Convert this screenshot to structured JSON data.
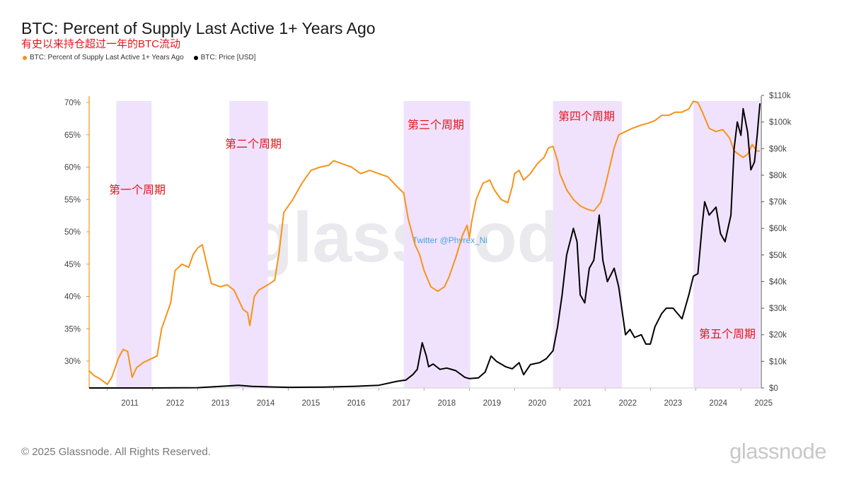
{
  "title": "BTC: Percent of Supply Last Active 1+ Years Ago",
  "subtitle": "有史以来持仓超过一年的BTC流动",
  "legend": [
    {
      "label": "BTC: Percent of Supply Last Active 1+ Years Ago",
      "color": "#f7931a"
    },
    {
      "label": "BTC: Price [USD]",
      "color": "#000000"
    }
  ],
  "copyright": "© 2025 Glassnode. All Rights Reserved.",
  "brand": "glassnode",
  "watermark": "glassnode",
  "watermark_handle": "Twitter @Phyrex_Ni",
  "chart_data": {
    "type": "line",
    "xlabel": "",
    "x_ticks": [
      "2011",
      "2012",
      "2013",
      "2014",
      "2015",
      "2016",
      "2017",
      "2018",
      "2019",
      "2020",
      "2021",
      "2022",
      "2023",
      "2024",
      "2025"
    ],
    "xlim": [
      2010.6,
      2025.45
    ],
    "y_left": {
      "ticks": [
        "30%",
        "35%",
        "40%",
        "45%",
        "50%",
        "55%",
        "60%",
        "65%",
        "70%"
      ],
      "lim": [
        26,
        71
      ],
      "unit": "%"
    },
    "y_right": {
      "ticks": [
        "$0",
        "$10k",
        "$20k",
        "$30k",
        "$40k",
        "$50k",
        "$60k",
        "$70k",
        "$80k",
        "$90k",
        "$100k",
        "$110k"
      ],
      "lim": [
        0,
        110000
      ],
      "unit": "USD"
    },
    "highlight_regions": [
      {
        "start": 2011.2,
        "end": 2011.98,
        "label": "第一个周期"
      },
      {
        "start": 2013.7,
        "end": 2014.55,
        "label": "第二个周期"
      },
      {
        "start": 2017.55,
        "end": 2019.02,
        "label": "第三个周期"
      },
      {
        "start": 2020.85,
        "end": 2022.37,
        "label": "第四个周期"
      },
      {
        "start": 2023.95,
        "end": 2025.42,
        "label": "第五个周期"
      }
    ],
    "series": [
      {
        "name": "BTC: Percent of Supply Last Active 1+ Years Ago",
        "axis": "left",
        "color": "#f7931a",
        "points": [
          [
            2010.6,
            28.5
          ],
          [
            2010.7,
            27.8
          ],
          [
            2010.85,
            27.2
          ],
          [
            2011.0,
            26.4
          ],
          [
            2011.1,
            27.5
          ],
          [
            2011.25,
            30.5
          ],
          [
            2011.35,
            31.8
          ],
          [
            2011.45,
            31.5
          ],
          [
            2011.55,
            27.5
          ],
          [
            2011.65,
            29.0
          ],
          [
            2011.8,
            29.8
          ],
          [
            2011.95,
            30.3
          ],
          [
            2012.1,
            30.8
          ],
          [
            2012.2,
            35.0
          ],
          [
            2012.3,
            37.0
          ],
          [
            2012.4,
            39.0
          ],
          [
            2012.5,
            44.0
          ],
          [
            2012.65,
            45.0
          ],
          [
            2012.8,
            44.5
          ],
          [
            2012.9,
            46.5
          ],
          [
            2013.0,
            47.5
          ],
          [
            2013.1,
            48.0
          ],
          [
            2013.2,
            45.0
          ],
          [
            2013.3,
            42.0
          ],
          [
            2013.5,
            41.5
          ],
          [
            2013.65,
            41.8
          ],
          [
            2013.8,
            41.0
          ],
          [
            2014.0,
            38.0
          ],
          [
            2014.1,
            37.5
          ],
          [
            2014.15,
            35.5
          ],
          [
            2014.25,
            40.0
          ],
          [
            2014.35,
            41.0
          ],
          [
            2014.55,
            41.8
          ],
          [
            2014.7,
            42.5
          ],
          [
            2014.8,
            47.0
          ],
          [
            2014.9,
            53.0
          ],
          [
            2015.1,
            55.0
          ],
          [
            2015.3,
            57.5
          ],
          [
            2015.5,
            59.5
          ],
          [
            2015.7,
            60.0
          ],
          [
            2015.9,
            60.3
          ],
          [
            2016.0,
            61.0
          ],
          [
            2016.2,
            60.5
          ],
          [
            2016.4,
            60.0
          ],
          [
            2016.6,
            59.0
          ],
          [
            2016.8,
            59.5
          ],
          [
            2017.0,
            59.0
          ],
          [
            2017.2,
            58.5
          ],
          [
            2017.4,
            57.0
          ],
          [
            2017.55,
            56.0
          ],
          [
            2017.65,
            52.0
          ],
          [
            2017.8,
            48.0
          ],
          [
            2017.9,
            46.5
          ],
          [
            2018.0,
            44.0
          ],
          [
            2018.15,
            41.5
          ],
          [
            2018.3,
            40.8
          ],
          [
            2018.45,
            41.5
          ],
          [
            2018.55,
            43.0
          ],
          [
            2018.7,
            46.0
          ],
          [
            2018.85,
            49.5
          ],
          [
            2018.95,
            51.0
          ],
          [
            2019.0,
            49.0
          ],
          [
            2019.05,
            51.5
          ],
          [
            2019.15,
            55.0
          ],
          [
            2019.3,
            57.5
          ],
          [
            2019.45,
            58.0
          ],
          [
            2019.55,
            56.5
          ],
          [
            2019.7,
            55.0
          ],
          [
            2019.85,
            54.5
          ],
          [
            2019.95,
            57.0
          ],
          [
            2020.0,
            59.0
          ],
          [
            2020.1,
            59.5
          ],
          [
            2020.2,
            58.0
          ],
          [
            2020.35,
            59.0
          ],
          [
            2020.5,
            60.5
          ],
          [
            2020.65,
            61.5
          ],
          [
            2020.75,
            63.0
          ],
          [
            2020.85,
            63.2
          ],
          [
            2020.95,
            61.0
          ],
          [
            2021.0,
            59.0
          ],
          [
            2021.15,
            56.5
          ],
          [
            2021.3,
            55.0
          ],
          [
            2021.45,
            54.0
          ],
          [
            2021.6,
            53.5
          ],
          [
            2021.75,
            53.2
          ],
          [
            2021.9,
            54.5
          ],
          [
            2022.0,
            57.0
          ],
          [
            2022.1,
            60.0
          ],
          [
            2022.2,
            63.0
          ],
          [
            2022.3,
            65.0
          ],
          [
            2022.45,
            65.5
          ],
          [
            2022.6,
            66.0
          ],
          [
            2022.8,
            66.5
          ],
          [
            2022.95,
            66.8
          ],
          [
            2023.1,
            67.2
          ],
          [
            2023.25,
            68.0
          ],
          [
            2023.4,
            68.0
          ],
          [
            2023.55,
            68.5
          ],
          [
            2023.7,
            68.5
          ],
          [
            2023.85,
            69.0
          ],
          [
            2023.95,
            70.2
          ],
          [
            2024.05,
            70.0
          ],
          [
            2024.15,
            68.5
          ],
          [
            2024.3,
            66.0
          ],
          [
            2024.45,
            65.5
          ],
          [
            2024.6,
            65.8
          ],
          [
            2024.75,
            64.5
          ],
          [
            2024.85,
            62.5
          ],
          [
            2024.95,
            62.0
          ],
          [
            2025.05,
            61.5
          ],
          [
            2025.15,
            62.0
          ],
          [
            2025.25,
            63.5
          ],
          [
            2025.35,
            62.5
          ],
          [
            2025.42,
            62.5
          ]
        ]
      },
      {
        "name": "BTC: Price [USD]",
        "axis": "right",
        "color": "#000000",
        "points": [
          [
            2010.6,
            0
          ],
          [
            2012.0,
            10
          ],
          [
            2013.0,
            100
          ],
          [
            2013.9,
            1000
          ],
          [
            2014.2,
            600
          ],
          [
            2014.6,
            400
          ],
          [
            2015.0,
            250
          ],
          [
            2015.8,
            350
          ],
          [
            2016.5,
            650
          ],
          [
            2017.0,
            1000
          ],
          [
            2017.4,
            2500
          ],
          [
            2017.6,
            3000
          ],
          [
            2017.75,
            5000
          ],
          [
            2017.85,
            7000
          ],
          [
            2017.96,
            17000
          ],
          [
            2018.05,
            12000
          ],
          [
            2018.1,
            8000
          ],
          [
            2018.2,
            9000
          ],
          [
            2018.35,
            7000
          ],
          [
            2018.5,
            7500
          ],
          [
            2018.7,
            6500
          ],
          [
            2018.9,
            4000
          ],
          [
            2019.0,
            3500
          ],
          [
            2019.2,
            3800
          ],
          [
            2019.35,
            6000
          ],
          [
            2019.48,
            12000
          ],
          [
            2019.6,
            10000
          ],
          [
            2019.8,
            8000
          ],
          [
            2019.95,
            7200
          ],
          [
            2020.1,
            9500
          ],
          [
            2020.2,
            5000
          ],
          [
            2020.35,
            8800
          ],
          [
            2020.55,
            9500
          ],
          [
            2020.7,
            11000
          ],
          [
            2020.85,
            14000
          ],
          [
            2020.95,
            23000
          ],
          [
            2021.05,
            35000
          ],
          [
            2021.15,
            50000
          ],
          [
            2021.3,
            60000
          ],
          [
            2021.38,
            55000
          ],
          [
            2021.45,
            35000
          ],
          [
            2021.55,
            32000
          ],
          [
            2021.65,
            45000
          ],
          [
            2021.75,
            48000
          ],
          [
            2021.87,
            65000
          ],
          [
            2021.95,
            48000
          ],
          [
            2022.05,
            40000
          ],
          [
            2022.2,
            45000
          ],
          [
            2022.3,
            38000
          ],
          [
            2022.45,
            20000
          ],
          [
            2022.55,
            22000
          ],
          [
            2022.65,
            19000
          ],
          [
            2022.8,
            20000
          ],
          [
            2022.9,
            16500
          ],
          [
            2023.0,
            16500
          ],
          [
            2023.1,
            23000
          ],
          [
            2023.25,
            28000
          ],
          [
            2023.35,
            30000
          ],
          [
            2023.5,
            30000
          ],
          [
            2023.7,
            26000
          ],
          [
            2023.85,
            35000
          ],
          [
            2023.95,
            42000
          ],
          [
            2024.05,
            43000
          ],
          [
            2024.15,
            62000
          ],
          [
            2024.2,
            70000
          ],
          [
            2024.3,
            65000
          ],
          [
            2024.45,
            68000
          ],
          [
            2024.55,
            58000
          ],
          [
            2024.65,
            55000
          ],
          [
            2024.78,
            65000
          ],
          [
            2024.85,
            90000
          ],
          [
            2024.92,
            100000
          ],
          [
            2025.0,
            95000
          ],
          [
            2025.05,
            105000
          ],
          [
            2025.15,
            96000
          ],
          [
            2025.22,
            82000
          ],
          [
            2025.3,
            85000
          ],
          [
            2025.36,
            95000
          ],
          [
            2025.42,
            107000
          ]
        ]
      }
    ],
    "grid": false
  }
}
